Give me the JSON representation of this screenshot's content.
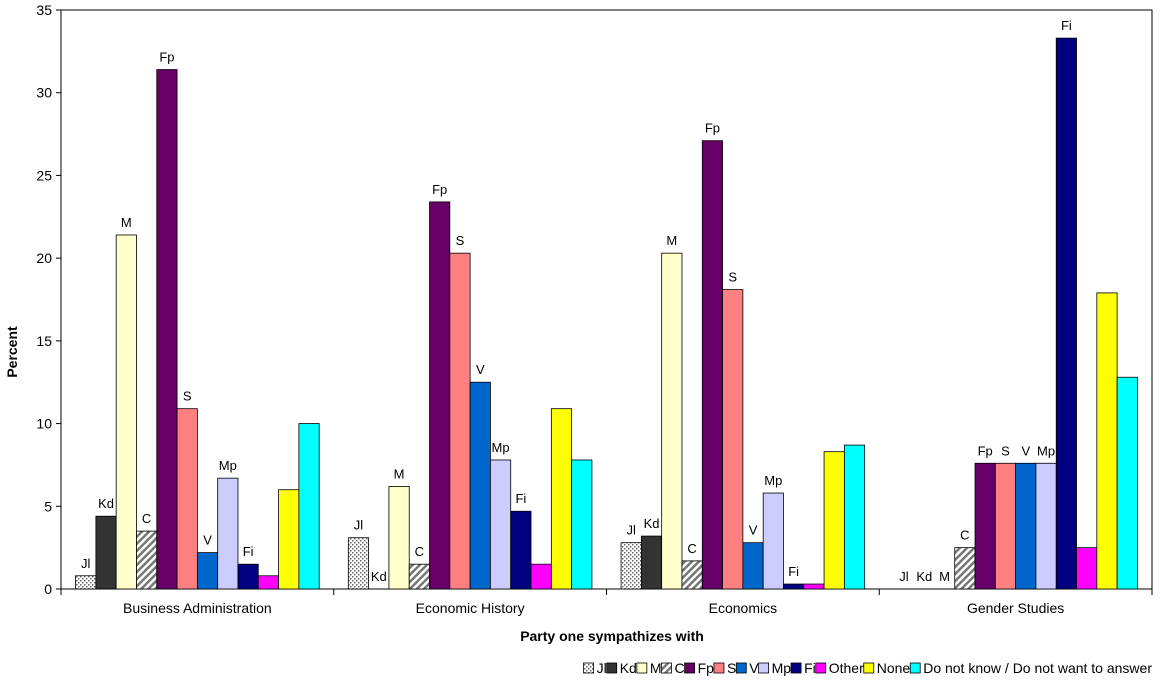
{
  "chart_data": {
    "type": "bar",
    "title": "",
    "xlabel": "Party one sympathizes with",
    "ylabel": "Percent",
    "ylim": [
      0,
      35
    ],
    "yticks": [
      0,
      5,
      10,
      15,
      20,
      25,
      30,
      35
    ],
    "grid": false,
    "legend_position": "bottom",
    "categories": [
      "Business Administration",
      "Economic History",
      "Economics",
      "Gender Studies"
    ],
    "series": [
      {
        "name": "Jl",
        "label": "Jl",
        "pattern": "dots",
        "color": "#cccccc",
        "values": [
          0.8,
          3.1,
          2.8,
          0
        ]
      },
      {
        "name": "Kd",
        "label": "Kd",
        "pattern": "solid",
        "color": "#333333",
        "values": [
          4.4,
          0,
          3.2,
          0
        ]
      },
      {
        "name": "M",
        "label": "M",
        "pattern": "solid",
        "color": "#ffffcc",
        "values": [
          21.4,
          6.2,
          20.3,
          0
        ]
      },
      {
        "name": "C",
        "label": "C",
        "pattern": "hatch",
        "color": "#aaaaaa",
        "values": [
          3.5,
          1.5,
          1.7,
          2.5
        ]
      },
      {
        "name": "Fp",
        "label": "Fp",
        "pattern": "solid",
        "color": "#660066",
        "values": [
          31.4,
          23.4,
          27.1,
          7.6
        ]
      },
      {
        "name": "S",
        "label": "S",
        "pattern": "solid",
        "color": "#ff8080",
        "values": [
          10.9,
          20.3,
          18.1,
          7.6
        ]
      },
      {
        "name": "V",
        "label": "V",
        "pattern": "solid",
        "color": "#0066cc",
        "values": [
          2.2,
          12.5,
          2.8,
          7.6
        ]
      },
      {
        "name": "Mp",
        "label": "Mp",
        "pattern": "solid",
        "color": "#ccccff",
        "values": [
          6.7,
          7.8,
          5.8,
          7.6
        ]
      },
      {
        "name": "Fi",
        "label": "Fi",
        "pattern": "solid",
        "color": "#000080",
        "values": [
          1.5,
          4.7,
          0.3,
          33.3
        ]
      },
      {
        "name": "Other",
        "label": "",
        "pattern": "solid",
        "color": "#ff00ff",
        "values": [
          0.8,
          1.5,
          0.3,
          2.5
        ]
      },
      {
        "name": "None",
        "label": "",
        "pattern": "solid",
        "color": "#ffff00",
        "values": [
          6.0,
          10.9,
          8.3,
          17.9
        ]
      },
      {
        "name": "Do not know / Do not want to answer",
        "label": "",
        "pattern": "solid",
        "color": "#00ffff",
        "values": [
          10.0,
          7.8,
          8.7,
          12.8
        ]
      }
    ]
  }
}
